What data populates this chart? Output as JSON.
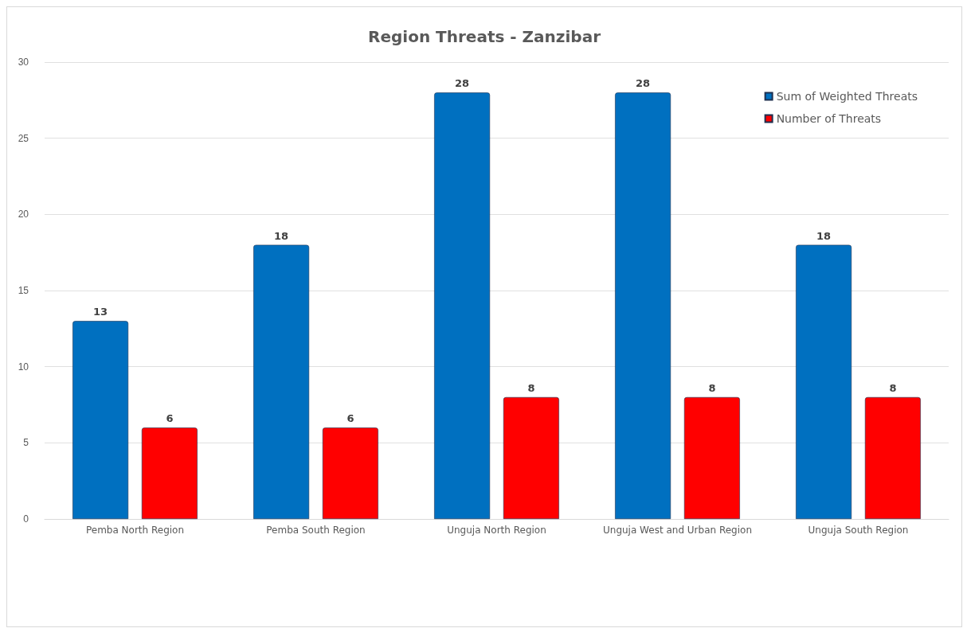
{
  "chart_data": {
    "type": "bar",
    "title": "Region Threats - Zanzibar",
    "categories": [
      "Pemba North Region",
      "Pemba South Region",
      "Unguja North Region",
      "Unguja West and Urban Region",
      "Unguja South Region"
    ],
    "series": [
      {
        "name": "Sum of Weighted Threats",
        "color": "#0070c0",
        "values": [
          13,
          18,
          28,
          28,
          18
        ]
      },
      {
        "name": "Number of Threats",
        "color": "#ff0000",
        "values": [
          6,
          6,
          8,
          8,
          8
        ]
      }
    ],
    "ylim": [
      0,
      30
    ],
    "yticks": [
      0,
      5,
      10,
      15,
      20,
      25,
      30
    ],
    "grid": "y",
    "legend": "top right",
    "data_labels": true
  }
}
